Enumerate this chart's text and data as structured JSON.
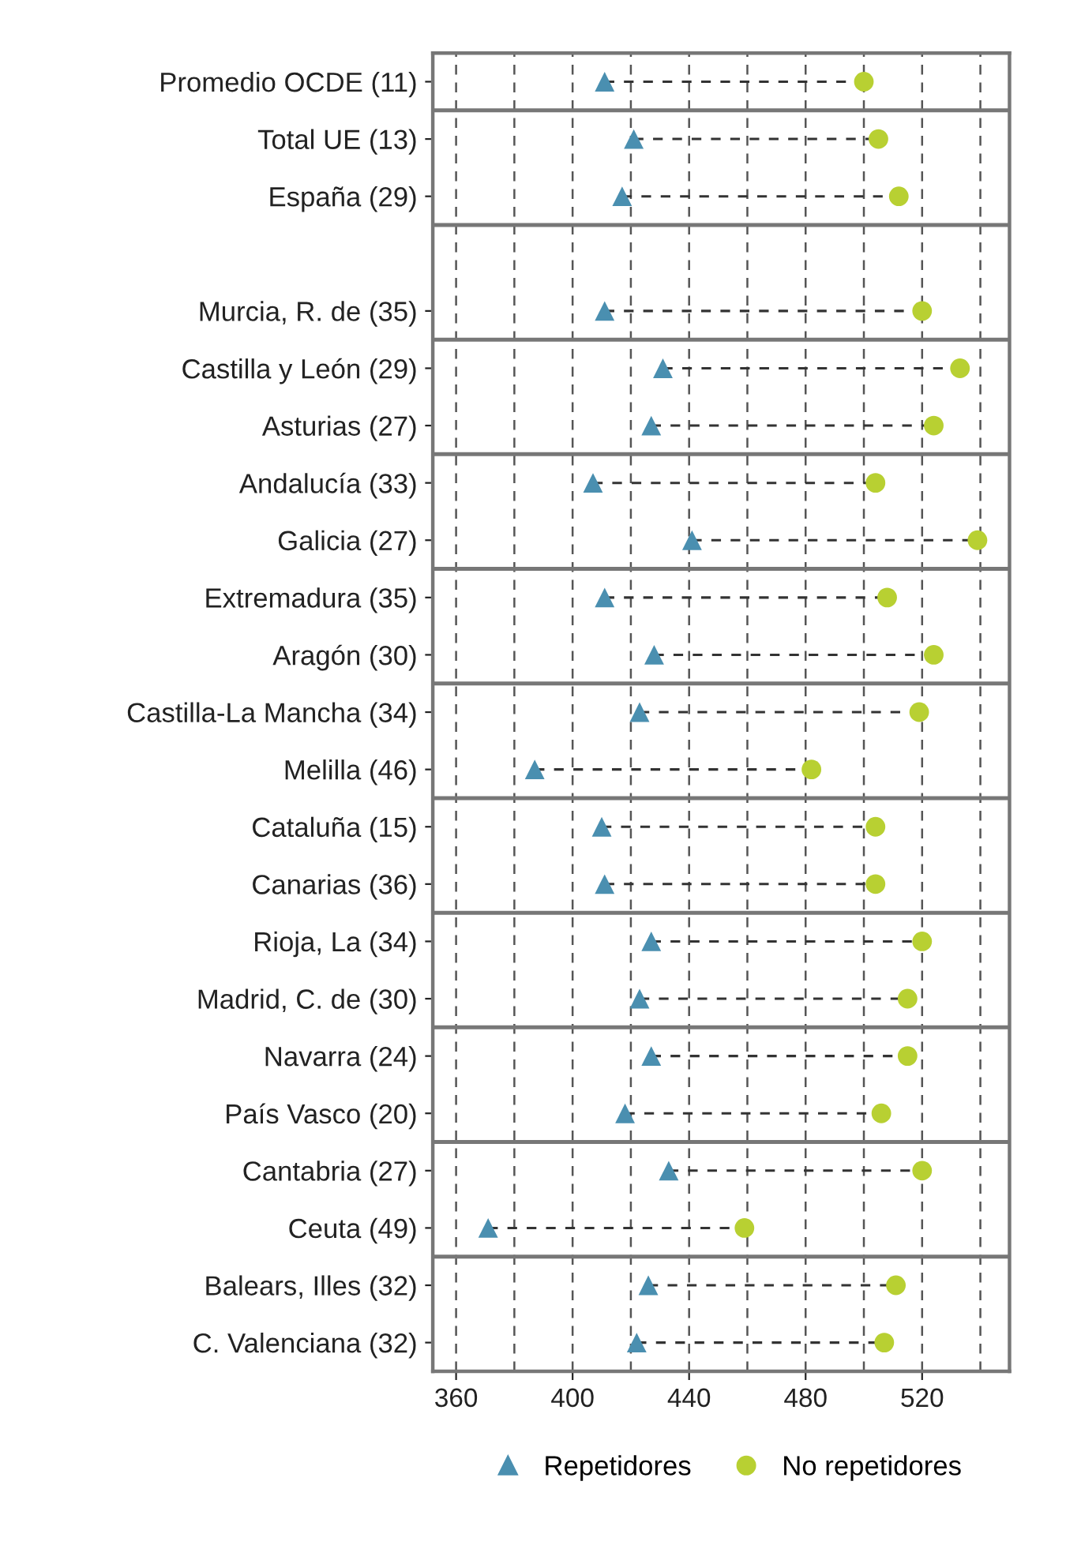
{
  "chart_data": {
    "type": "scatter",
    "categories": [
      "Promedio OCDE (11)",
      "Total UE (13)",
      "España (29)",
      null,
      "Murcia, R. de (35)",
      "Castilla y León (29)",
      "Asturias (27)",
      "Andalucía (33)",
      "Galicia (27)",
      "Extremadura (35)",
      "Aragón (30)",
      "Castilla-La Mancha (34)",
      "Melilla (46)",
      "Cataluña (15)",
      "Canarias (36)",
      "Rioja, La (34)",
      "Madrid, C. de (30)",
      "Navarra (24)",
      "País Vasco (20)",
      "Cantabria (27)",
      "Ceuta (49)",
      "Balears, Illes (32)",
      "C. Valenciana (32)"
    ],
    "orientation": "horizontal",
    "series": [
      {
        "name": "Repetidores",
        "color": "#4a8fb0",
        "marker": "triangle",
        "values": [
          411,
          421,
          417,
          null,
          411,
          431,
          427,
          407,
          441,
          411,
          428,
          423,
          387,
          410,
          411,
          427,
          423,
          427,
          418,
          433,
          371,
          426,
          422
        ]
      },
      {
        "name": "No repetidores",
        "color": "#b8d032",
        "marker": "circle",
        "values": [
          500,
          505,
          512,
          null,
          520,
          533,
          524,
          504,
          539,
          508,
          524,
          519,
          482,
          504,
          504,
          520,
          515,
          515,
          506,
          520,
          459,
          511,
          507
        ]
      }
    ],
    "xlim": [
      352,
      550
    ],
    "xticks": [
      360,
      400,
      440,
      480,
      520
    ],
    "grid": "x",
    "line_style": "dashed",
    "legend": "bottom"
  }
}
